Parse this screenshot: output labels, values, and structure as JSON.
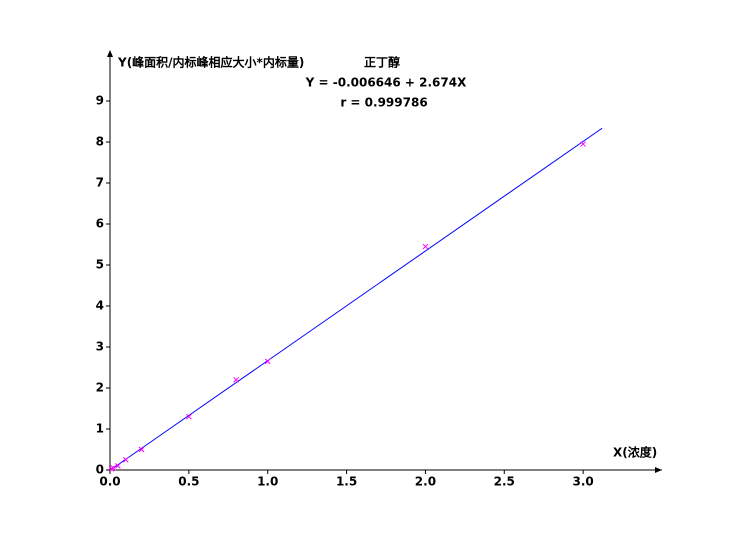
{
  "chart_data": {
    "type": "scatter",
    "title": "正丁醇",
    "y_label": "Y(峰面积/内标峰相应大小*内标量)",
    "x_label": "X(浓度)",
    "annotations": [
      "Y = -0.006646 + 2.674X",
      "r = 0.999786"
    ],
    "xlim": [
      0,
      3.5
    ],
    "ylim": [
      0,
      10
    ],
    "xticks": [
      {
        "value": 0,
        "label": "0.0"
      },
      {
        "value": 0.5,
        "label": "0.5"
      },
      {
        "value": 1,
        "label": "1.0"
      },
      {
        "value": 1.5,
        "label": "1.5"
      },
      {
        "value": 2,
        "label": "2.0"
      },
      {
        "value": 2.5,
        "label": "2.5"
      },
      {
        "value": 3,
        "label": "3.0"
      }
    ],
    "yticks": [
      0,
      1,
      2,
      3,
      4,
      5,
      6,
      7,
      8,
      9
    ],
    "points": {
      "color": "#ff00ff",
      "x": [
        0.01,
        0.02,
        0.05,
        0.1,
        0.2,
        0.5,
        0.8,
        1.0,
        2.0,
        3.0
      ],
      "y": [
        0.03,
        0.05,
        0.1,
        0.25,
        0.5,
        1.3,
        2.2,
        2.65,
        5.45,
        7.95
      ]
    },
    "fit_line": {
      "color": "#0000ff",
      "x": [
        0,
        3.12
      ],
      "y": [
        -0.0066,
        8.336
      ]
    }
  }
}
